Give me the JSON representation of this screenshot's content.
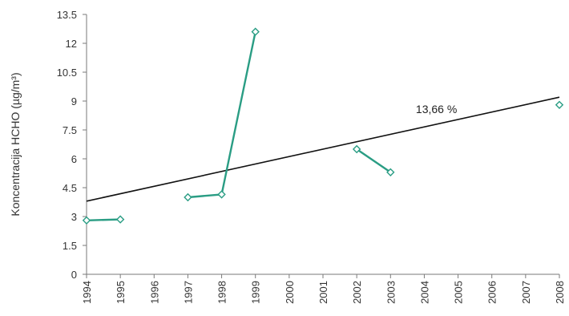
{
  "chart_data": {
    "type": "line",
    "title": "",
    "xlabel": "",
    "ylabel": "Koncentracija HCHO (µg/m³)",
    "ylim": [
      0,
      13.5
    ],
    "yticks": [
      0,
      1.5,
      3,
      4.5,
      6,
      7.5,
      9,
      10.5,
      12,
      13.5
    ],
    "ytick_labels": [
      "0",
      "1.5",
      "3",
      "4.5",
      "6",
      "7.5",
      "9",
      "10.5",
      "12",
      "13.5"
    ],
    "categories": [
      "1994",
      "1995",
      "1996",
      "1997",
      "1998",
      "1999",
      "2000",
      "2001",
      "2002",
      "2003",
      "2004",
      "2005",
      "2006",
      "2007",
      "2008"
    ],
    "series": [
      {
        "values": [
          2.8,
          2.85,
          null,
          4.0,
          4.15,
          12.6,
          null,
          null,
          6.5,
          5.3,
          null,
          null,
          null,
          null,
          8.8
        ],
        "color": "#2a9d84"
      }
    ],
    "trendline": {
      "start": {
        "x": "1994",
        "y": 3.8
      },
      "end": {
        "x": "2008",
        "y": 9.2
      },
      "color": "#111111"
    },
    "annotation": "13,66 %",
    "grid": false,
    "legend": "none"
  }
}
